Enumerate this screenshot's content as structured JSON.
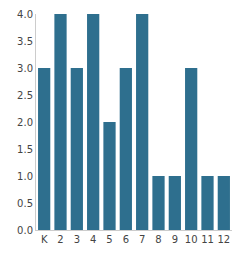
{
  "chart_data": {
    "type": "bar",
    "categories": [
      "K",
      "2",
      "3",
      "4",
      "5",
      "6",
      "7",
      "8",
      "9",
      "10",
      "11",
      "12"
    ],
    "values": [
      3,
      4,
      3,
      4,
      2,
      3,
      4,
      1,
      1,
      3,
      1,
      1
    ],
    "color": "#2e6f8e",
    "ylim": [
      0,
      4
    ],
    "yticks": [
      {
        "value": 0,
        "label": "0.0"
      },
      0.5,
      {
        "value": 1,
        "label": "1.0"
      },
      1.5,
      {
        "value": 2,
        "label": "2.0"
      },
      2.5,
      {
        "value": 3,
        "label": "3.0"
      },
      3.5,
      {
        "value": 4,
        "label": "4.0"
      }
    ],
    "grid": false
  }
}
